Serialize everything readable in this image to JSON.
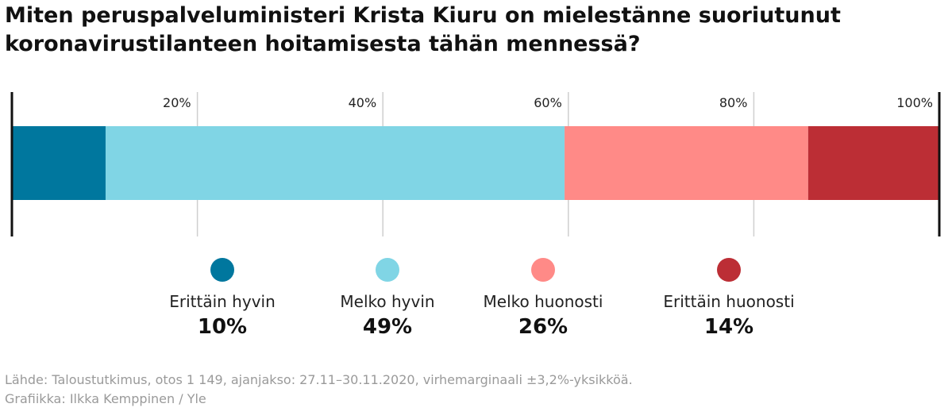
{
  "title": "Miten peruspalveluministeri Krista Kiuru on mielestänne suoriutunut koronavirustilanteen hoitamisesta tähän mennessä?",
  "chart_data": {
    "type": "bar",
    "orientation": "horizontal-stacked",
    "xlim": [
      0,
      100
    ],
    "ticks": [
      {
        "value": 20,
        "label": "20%"
      },
      {
        "value": 40,
        "label": "40%"
      },
      {
        "value": 60,
        "label": "60%"
      },
      {
        "value": 80,
        "label": "80%"
      },
      {
        "value": 100,
        "label": "100%"
      }
    ],
    "grid": true,
    "legend_placement": "bottom",
    "series": [
      {
        "name": "Erittäin hyvin",
        "value": 10,
        "value_label": "10%",
        "color": "#00779E"
      },
      {
        "name": "Melko hyvin",
        "value": 49,
        "value_label": "49%",
        "color": "#80D5E5"
      },
      {
        "name": "Melko huonosti",
        "value": 26,
        "value_label": "26%",
        "color": "#FF8A87"
      },
      {
        "name": "Erittäin huonosti",
        "value": 14,
        "value_label": "14%",
        "color": "#BC2E35"
      }
    ]
  },
  "footer": {
    "source": "Lähde: Taloustutkimus, otos 1 149, ajanjakso: 27.11–30.11.2020, virhemarginaali ±3,2%-yksikköä.",
    "credit": "Grafiikka: Ilkka Kemppinen / Yle"
  }
}
